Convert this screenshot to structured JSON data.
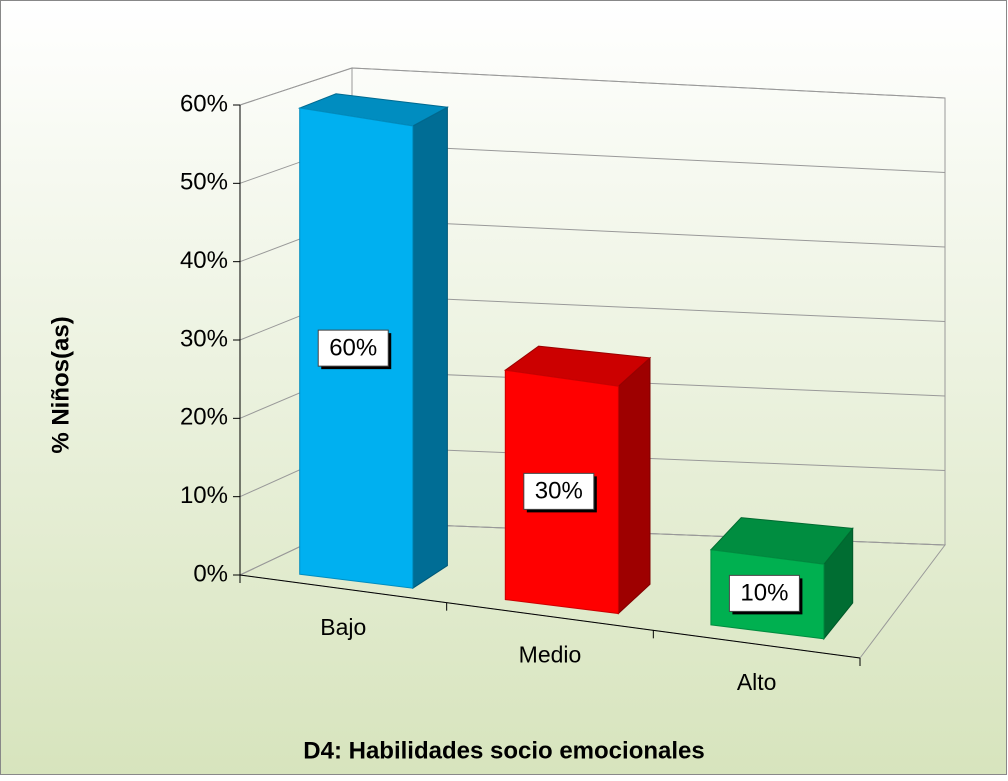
{
  "chart_data": {
    "type": "bar3d",
    "title": "D4: Habilidades socio emocionales",
    "y_label": "% Niños(as)",
    "categories": [
      "Bajo",
      "Medio",
      "Alto"
    ],
    "values": [
      60,
      30,
      10
    ],
    "value_labels": [
      "60%",
      "30%",
      "10%"
    ],
    "colors": [
      "#00b0f0",
      "#ff0000",
      "#00b050"
    ],
    "ylim": [
      0,
      60
    ],
    "yticks": [
      {
        "value": 0,
        "label": "0%"
      },
      {
        "value": 10,
        "label": "10%"
      },
      {
        "value": 20,
        "label": "20%"
      },
      {
        "value": 30,
        "label": "30%"
      },
      {
        "value": 40,
        "label": "40%"
      },
      {
        "value": 50,
        "label": "50%"
      },
      {
        "value": 60,
        "label": "60%"
      }
    ],
    "grid": true
  }
}
